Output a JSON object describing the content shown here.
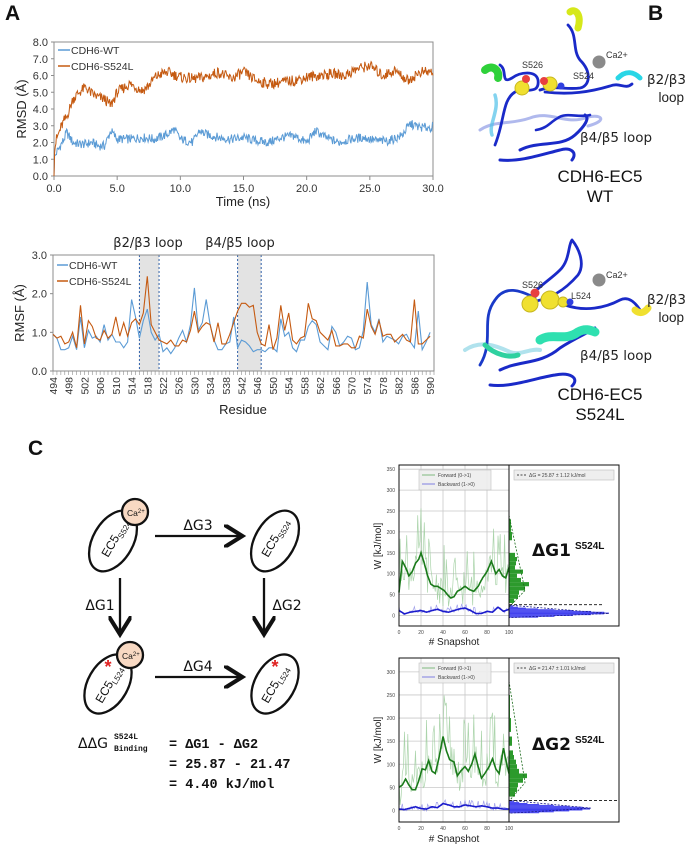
{
  "panels": {
    "a": {
      "label": "A"
    },
    "b": {
      "label": "B"
    },
    "c": {
      "label": "C"
    }
  },
  "chart_data": [
    {
      "id": "rmsd",
      "type": "line",
      "title": "",
      "xlabel": "Time (ns)",
      "ylabel": "RMSD (Å)",
      "xlim": [
        0,
        30
      ],
      "ylim": [
        0,
        8
      ],
      "x_ticks": [
        "0.0",
        "5.0",
        "10.0",
        "15.0",
        "20.0",
        "25.0",
        "30.0"
      ],
      "y_ticks": [
        "0.0",
        "1.0",
        "2.0",
        "3.0",
        "4.0",
        "5.0",
        "6.0",
        "7.0",
        "8.0"
      ],
      "grid": false,
      "legend": "top-left",
      "series": [
        {
          "name": "CDH6-WT",
          "color": "#5b9bd5",
          "x": [
            0,
            0.2,
            0.5,
            0.8,
            1.0,
            1.5,
            2.0,
            2.5,
            3.0,
            3.5,
            4.0,
            4.5,
            5.0,
            6.0,
            7.0,
            8.0,
            9.0,
            9.5,
            10.0,
            11.0,
            11.5,
            12.0,
            13.0,
            14.0,
            15.0,
            16.0,
            17.0,
            18.0,
            19.0,
            20.0,
            20.7,
            21.5,
            22.5,
            23.5,
            24.5,
            25.5,
            26.5,
            27.5,
            28.2,
            29.0,
            30.0
          ],
          "y": [
            1.0,
            1.4,
            1.8,
            2.2,
            2.6,
            2.0,
            1.9,
            1.9,
            2.0,
            1.8,
            1.8,
            2.7,
            2.2,
            2.2,
            2.3,
            2.2,
            2.5,
            2.8,
            2.2,
            2.0,
            2.7,
            2.5,
            2.3,
            2.2,
            2.3,
            2.1,
            2.0,
            2.3,
            2.4,
            2.0,
            2.7,
            2.3,
            2.0,
            2.2,
            2.3,
            2.1,
            2.1,
            2.4,
            3.1,
            2.9,
            2.9
          ]
        },
        {
          "name": "CDH6-S524L",
          "color": "#c55a11",
          "x": [
            0,
            0.2,
            0.5,
            0.8,
            1.0,
            1.5,
            2.0,
            2.5,
            3.0,
            3.5,
            4.0,
            4.5,
            5.0,
            6.0,
            7.0,
            7.5,
            8.0,
            8.5,
            9.0,
            10.0,
            11.0,
            12.0,
            13.0,
            14.0,
            15.0,
            16.0,
            17.0,
            18.0,
            19.0,
            20.0,
            21.0,
            22.0,
            23.0,
            24.0,
            25.0,
            26.0,
            27.0,
            28.0,
            29.0,
            30.0
          ],
          "y": [
            1.5,
            2.2,
            2.8,
            3.3,
            3.5,
            4.6,
            5.0,
            5.3,
            4.9,
            4.7,
            4.6,
            4.2,
            5.0,
            5.5,
            5.1,
            5.4,
            5.9,
            6.1,
            6.2,
            5.9,
            5.8,
            5.9,
            6.2,
            5.8,
            6.2,
            5.7,
            5.5,
            5.6,
            5.7,
            5.9,
            6.0,
            6.1,
            6.0,
            6.4,
            6.6,
            6.0,
            6.3,
            5.7,
            6.2,
            6.2
          ]
        }
      ]
    },
    {
      "id": "rmsf",
      "type": "line",
      "xlabel": "Residue",
      "ylabel": "RMSF (Å)",
      "xlim": [
        494,
        591
      ],
      "ylim": [
        0,
        3
      ],
      "y_ticks": [
        "0.0",
        "1.0",
        "2.0",
        "3.0"
      ],
      "x_ticks": [
        "494",
        "498",
        "502",
        "506",
        "510",
        "514",
        "518",
        "522",
        "526",
        "530",
        "534",
        "538",
        "542",
        "546",
        "550",
        "554",
        "558",
        "562",
        "566",
        "570",
        "574",
        "578",
        "582",
        "586",
        "590"
      ],
      "grid": false,
      "legend": "top-left",
      "annotations": [
        {
          "label": "β2/β3 loop",
          "range": [
            516,
            521
          ]
        },
        {
          "label": "β4/β5 loop",
          "range": [
            541,
            547
          ]
        }
      ],
      "series": [
        {
          "name": "CDH6-WT",
          "color": "#5b9bd5",
          "x": [
            494,
            495,
            496,
            497,
            498,
            499,
            500,
            501,
            502,
            503,
            504,
            505,
            506,
            507,
            508,
            509,
            510,
            511,
            512,
            513,
            514,
            515,
            516,
            517,
            518,
            519,
            520,
            521,
            522,
            523,
            524,
            525,
            526,
            527,
            528,
            529,
            530,
            531,
            532,
            533,
            534,
            535,
            536,
            537,
            538,
            539,
            540,
            541,
            542,
            543,
            544,
            545,
            546,
            547,
            548,
            549,
            550,
            551,
            552,
            553,
            554,
            555,
            556,
            557,
            558,
            559,
            560,
            561,
            562,
            563,
            564,
            565,
            566,
            567,
            568,
            569,
            570,
            571,
            572,
            573,
            574,
            575,
            576,
            577,
            578,
            579,
            580,
            581,
            582,
            583,
            584,
            585,
            586,
            587,
            588,
            589,
            590
          ],
          "y": [
            0.95,
            0.85,
            0.55,
            0.55,
            0.6,
            0.9,
            0.55,
            1.4,
            0.6,
            1.05,
            0.85,
            0.9,
            0.75,
            1.2,
            0.8,
            0.95,
            0.75,
            0.75,
            0.6,
            0.75,
            1.85,
            1.4,
            0.85,
            1.3,
            1.6,
            1.0,
            0.8,
            0.95,
            0.5,
            0.6,
            0.45,
            0.6,
            0.85,
            1.05,
            0.75,
            1.2,
            2.15,
            1.05,
            1.25,
            1.85,
            1.2,
            0.8,
            0.55,
            0.55,
            0.7,
            0.75,
            1.4,
            0.6,
            0.8,
            0.75,
            0.65,
            0.5,
            0.55,
            0.55,
            0.5,
            0.6,
            0.6,
            0.5,
            1.35,
            0.9,
            1.0,
            0.6,
            0.5,
            0.8,
            0.8,
            1.15,
            1.3,
            1.2,
            0.75,
            0.65,
            0.55,
            1.15,
            1.0,
            0.65,
            0.75,
            0.9,
            0.85,
            0.55,
            0.6,
            1.05,
            2.3,
            1.2,
            1.0,
            1.35,
            0.75,
            0.9,
            0.85,
            0.8,
            0.7,
            0.9,
            0.95,
            0.75,
            0.6,
            1.55,
            0.55,
            0.75,
            1.0
          ]
        },
        {
          "name": "CDH6-S524L",
          "color": "#c55a11",
          "x": [
            494,
            495,
            496,
            497,
            498,
            499,
            500,
            501,
            502,
            503,
            504,
            505,
            506,
            507,
            508,
            509,
            510,
            511,
            512,
            513,
            514,
            515,
            516,
            517,
            518,
            519,
            520,
            521,
            522,
            523,
            524,
            525,
            526,
            527,
            528,
            529,
            530,
            531,
            532,
            533,
            534,
            535,
            536,
            537,
            538,
            539,
            540,
            541,
            542,
            543,
            544,
            545,
            546,
            547,
            548,
            549,
            550,
            551,
            552,
            553,
            554,
            555,
            556,
            557,
            558,
            559,
            560,
            561,
            562,
            563,
            564,
            565,
            566,
            567,
            568,
            569,
            570,
            571,
            572,
            573,
            574,
            575,
            576,
            577,
            578,
            579,
            580,
            581,
            582,
            583,
            584,
            585,
            586,
            587,
            588,
            589,
            590
          ],
          "y": [
            0.95,
            0.85,
            0.9,
            0.7,
            0.75,
            1.0,
            0.6,
            1.7,
            0.7,
            1.3,
            1.15,
            0.85,
            0.8,
            1.05,
            0.85,
            0.95,
            1.4,
            0.9,
            1.25,
            0.9,
            1.25,
            1.35,
            1.2,
            1.5,
            2.45,
            1.2,
            1.0,
            0.8,
            0.75,
            0.7,
            0.8,
            0.65,
            0.65,
            0.8,
            0.75,
            1.05,
            1.55,
            1.0,
            1.15,
            1.25,
            1.2,
            0.75,
            1.25,
            0.7,
            0.7,
            0.95,
            1.25,
            1.55,
            1.75,
            1.75,
            1.65,
            1.7,
            1.0,
            0.7,
            0.65,
            1.2,
            0.55,
            0.85,
            1.7,
            1.05,
            1.5,
            0.8,
            0.7,
            0.85,
            0.9,
            1.75,
            1.35,
            1.3,
            1.0,
            0.9,
            0.8,
            1.05,
            0.65,
            0.65,
            0.7,
            0.7,
            0.6,
            0.6,
            0.9,
            0.85,
            1.6,
            1.15,
            0.95,
            1.3,
            0.9,
            0.95,
            0.95,
            0.75,
            0.85,
            0.95,
            0.8,
            0.75,
            1.85,
            0.7,
            0.7,
            0.8,
            0.9
          ]
        }
      ]
    },
    {
      "id": "fep-dg1",
      "type": "line",
      "title": "ΔG1 S524L",
      "xlabel": "# Snapshot",
      "ylabel": "W [kJ/mol]",
      "xlim": [
        0,
        100
      ],
      "ylim": [
        -25,
        360
      ],
      "x_ticks": [
        "0",
        "20",
        "40",
        "60",
        "80",
        "100"
      ],
      "y_ticks": [
        "0",
        "50",
        "100",
        "150",
        "200",
        "250",
        "300",
        "350"
      ],
      "grid": true,
      "legend": "top",
      "legend_entries": [
        "Forward (0->1)",
        "Backward (1->0)"
      ],
      "histogram_legend": "ΔG = 25.87 ± 1.12 kJ/mol",
      "delta_g": 25.87,
      "delta_g_err": 1.12,
      "series": [
        {
          "name": "Forward (0->1)",
          "color": "#1a7a1a",
          "x": [
            0,
            3,
            6,
            9,
            12,
            15,
            18,
            20,
            23,
            26,
            29,
            32,
            35,
            38,
            41,
            44,
            47,
            50,
            53,
            56,
            60,
            64,
            68,
            72,
            76,
            80,
            84,
            88,
            91,
            94,
            97,
            100
          ],
          "y": [
            55,
            130,
            115,
            95,
            105,
            125,
            135,
            150,
            125,
            95,
            75,
            70,
            70,
            65,
            60,
            50,
            42,
            45,
            58,
            62,
            70,
            62,
            58,
            70,
            90,
            105,
            130,
            100,
            110,
            95,
            90,
            115
          ]
        },
        {
          "name": "Backward (1->0)",
          "color": "#1a1acc",
          "x": [
            0,
            5,
            10,
            15,
            20,
            25,
            30,
            35,
            40,
            45,
            50,
            55,
            60,
            65,
            70,
            75,
            80,
            85,
            90,
            95,
            100
          ],
          "y": [
            12,
            4,
            8,
            10,
            12,
            8,
            12,
            15,
            10,
            8,
            12,
            16,
            18,
            12,
            5,
            5,
            10,
            8,
            20,
            10,
            15
          ]
        }
      ]
    },
    {
      "id": "fep-dg2",
      "type": "line",
      "title": "ΔG2 S524L",
      "xlabel": "# Snapshot",
      "ylabel": "W [kJ/mol]",
      "xlim": [
        0,
        100
      ],
      "ylim": [
        -25,
        330
      ],
      "x_ticks": [
        "0",
        "20",
        "40",
        "60",
        "80",
        "100"
      ],
      "y_ticks": [
        "0",
        "50",
        "100",
        "150",
        "200",
        "250",
        "300"
      ],
      "grid": true,
      "legend": "top",
      "legend_entries": [
        "Forward (0->1)",
        "Backward (1->0)"
      ],
      "histogram_legend": "ΔG = 21.47 ± 1.01 kJ/mol",
      "delta_g": 21.47,
      "delta_g_err": 1.01,
      "series": [
        {
          "name": "Forward (0->1)",
          "color": "#1a7a1a",
          "x": [
            0,
            3,
            6,
            9,
            12,
            15,
            18,
            21,
            24,
            27,
            30,
            33,
            36,
            40,
            43,
            46,
            50,
            53,
            56,
            60,
            63,
            66,
            69,
            72,
            75,
            78,
            82,
            85,
            88,
            91,
            95,
            97,
            100
          ],
          "y": [
            50,
            55,
            68,
            55,
            45,
            45,
            65,
            90,
            88,
            108,
            85,
            80,
            110,
            160,
            130,
            110,
            105,
            75,
            85,
            95,
            85,
            100,
            122,
            95,
            70,
            80,
            95,
            112,
            90,
            80,
            135,
            110,
            80
          ]
        },
        {
          "name": "Backward (1->0)",
          "color": "#1a1acc",
          "x": [
            0,
            5,
            10,
            15,
            20,
            25,
            30,
            35,
            40,
            45,
            50,
            55,
            60,
            65,
            70,
            75,
            80,
            85,
            90,
            95,
            100
          ],
          "y": [
            3,
            2,
            5,
            8,
            4,
            3,
            8,
            6,
            15,
            12,
            8,
            8,
            12,
            10,
            8,
            10,
            8,
            5,
            5,
            3,
            3
          ]
        }
      ]
    }
  ],
  "structures": {
    "wt": {
      "title_line1": "CDH6-EC5",
      "title_line2": "WT",
      "residue_left": "S526",
      "residue_right": "S524",
      "ion": "Ca2+",
      "loop_top_line1": "β2/β3",
      "loop_top_line2": "loop",
      "loop_bottom": "β4/β5 loop"
    },
    "mut": {
      "title_line1": "CDH6-EC5",
      "title_line2": "S524L",
      "residue_left": "S526",
      "residue_right": "L524",
      "ion": "Ca2+",
      "loop_top_line1": "β2/β3",
      "loop_top_line2": "loop",
      "loop_bottom": "β4/β5 loop"
    }
  },
  "cycle": {
    "ca_label": "Ca",
    "ca_sup": "2+",
    "ec5": "EC5",
    "sub_wt": "S524",
    "sub_mut": "L524",
    "mutation_marker": "*",
    "dg1": "ΔG1",
    "dg2": "ΔG2",
    "dg3": "ΔG3",
    "dg4": "ΔG4",
    "ddg_symbol": "ΔΔG",
    "ddg_sup": "S524L",
    "ddg_sub": "Binding",
    "line1": "= ΔG1 - ΔG2",
    "line2": "= 25.87 - 21.47",
    "line3": "= 4.40 kJ/mol"
  },
  "fep_titles": {
    "dg1_main": "ΔG1",
    "dg1_sup": "S524L",
    "dg2_main": "ΔG2",
    "dg2_sup": "S524L"
  },
  "colors": {
    "wt_blue": "#5b9bd5",
    "mut_orange": "#c55a11",
    "loop_shade": "#e3e3e3",
    "ca_fill": "#f8d9c3",
    "forward_green": "#1a7a1a",
    "backward_blue": "#1a1acc"
  }
}
